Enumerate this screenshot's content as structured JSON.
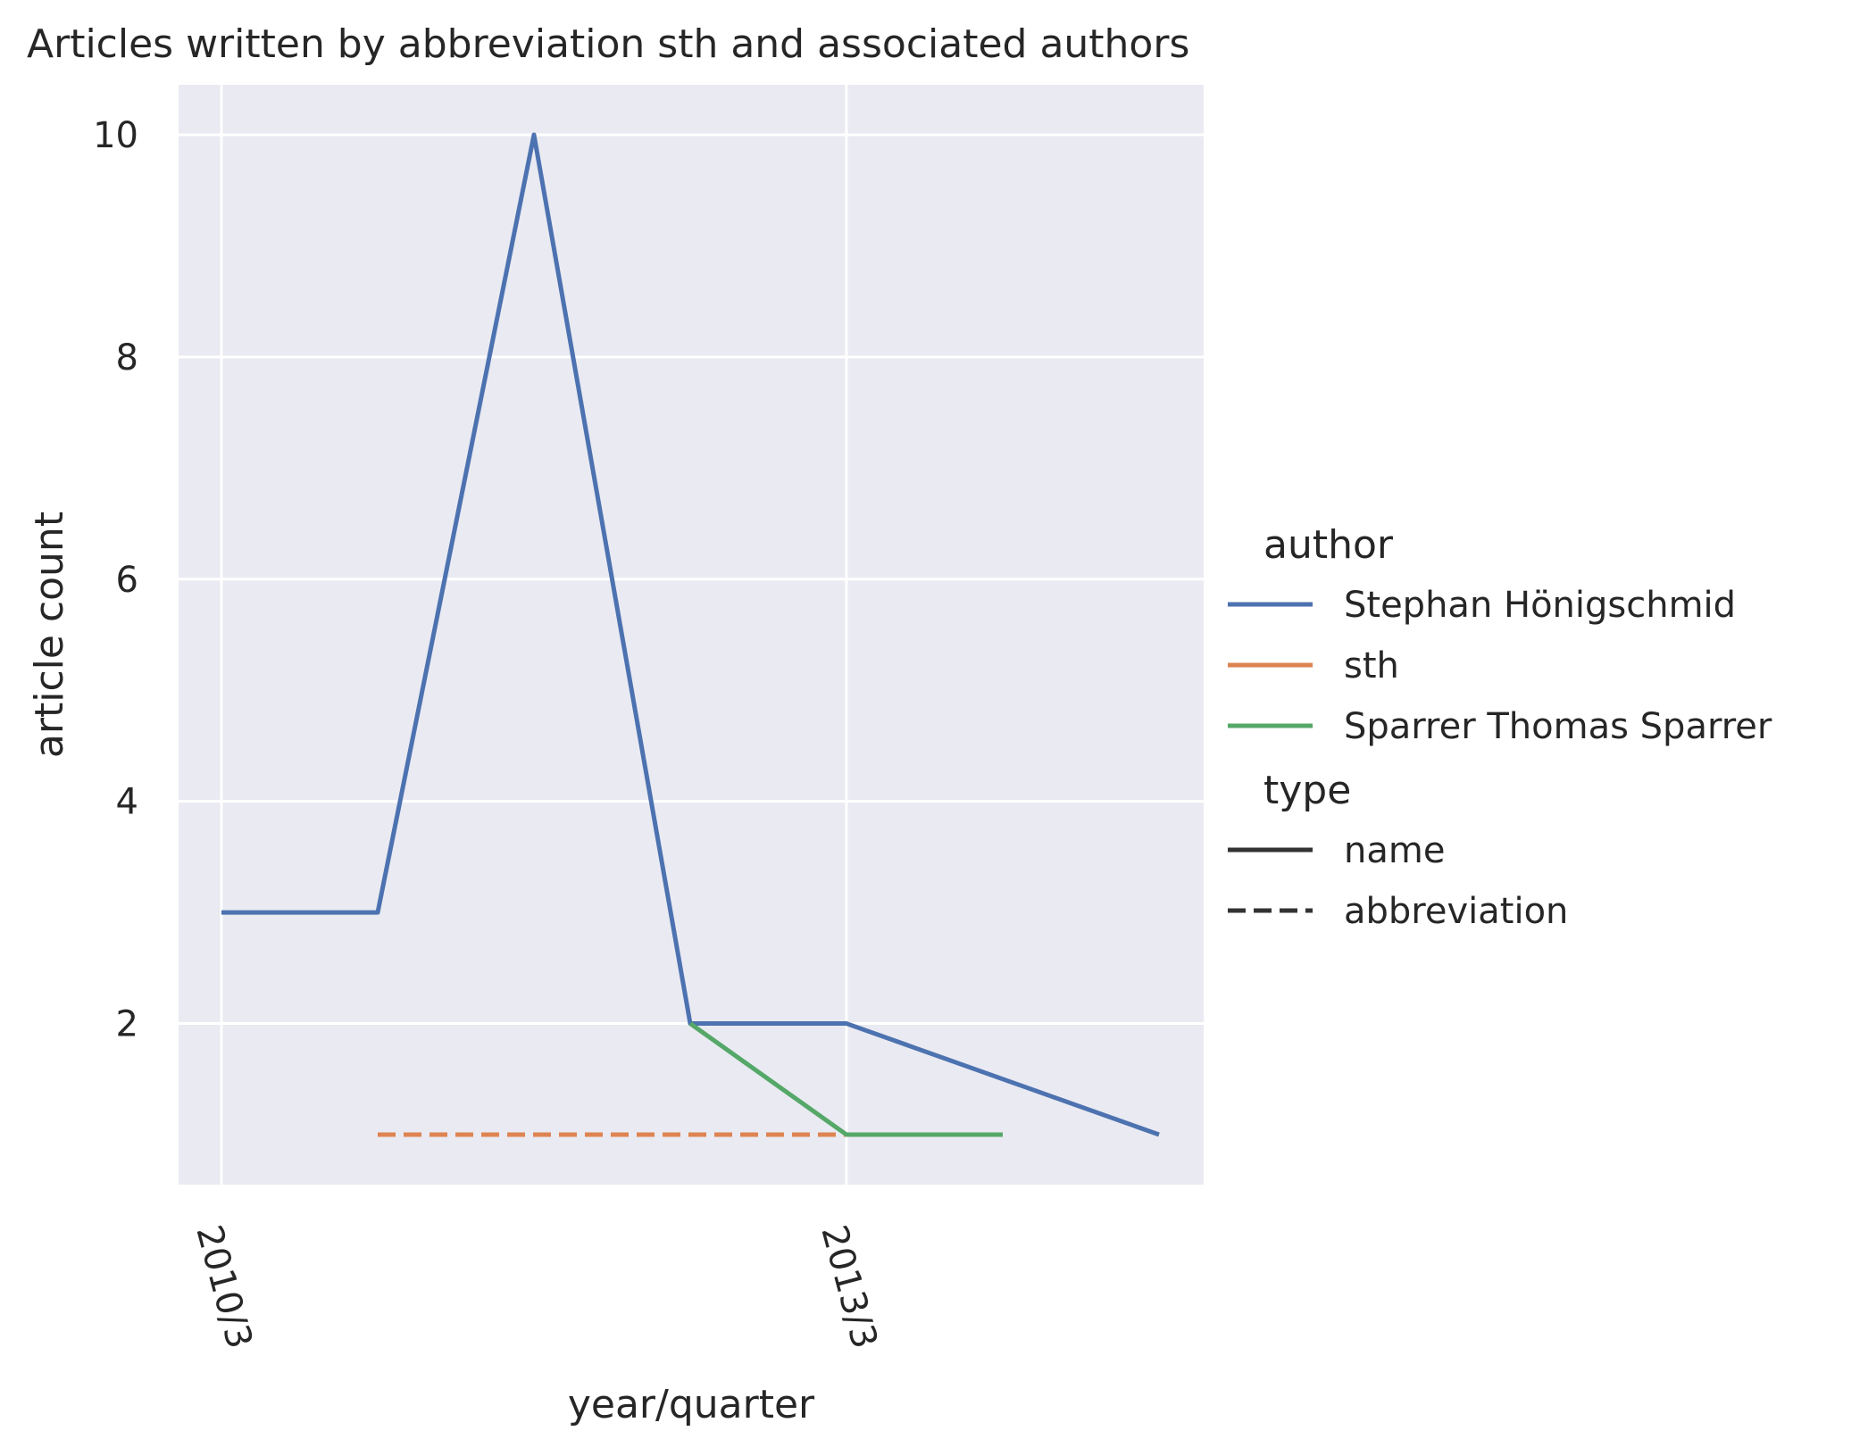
{
  "chart_data": {
    "type": "line",
    "title": "Articles written by abbreviation sth and associated authors",
    "xlabel": "year/quarter",
    "ylabel": "article count",
    "x_tick_labels": [
      "2010/3",
      "2013/3"
    ],
    "y_tick_labels": [
      "2",
      "4",
      "6",
      "8",
      "10"
    ],
    "x_categories": [
      "2010/3",
      "2011/2",
      "2012/1",
      "2012/4",
      "2013/3",
      "2014/2",
      "2015/1"
    ],
    "ylim": [
      0.55,
      10.45
    ],
    "grid": true,
    "legend_placement": "right",
    "series": [
      {
        "name": "Stephan Hönigschmid",
        "type": "name",
        "color": "#4c72b0",
        "dash": "solid",
        "x": [
          "2010/3",
          "2011/2",
          "2012/1",
          "2012/4",
          "2013/3",
          "2015/1"
        ],
        "values": [
          3,
          3,
          10,
          2,
          2,
          1
        ]
      },
      {
        "name": "sth",
        "type": "abbreviation",
        "color": "#dd8452",
        "dash": "dashed",
        "x": [
          "2011/2",
          "2013/3"
        ],
        "values": [
          1,
          1
        ]
      },
      {
        "name": "Sparrer Thomas Sparrer",
        "type": "name",
        "color": "#55a868",
        "dash": "solid",
        "x": [
          "2012/4",
          "2013/3",
          "2014/2"
        ],
        "values": [
          2,
          1,
          1
        ]
      }
    ],
    "legend": {
      "author_title": "author",
      "type_title": "type",
      "type_entries": [
        {
          "label": "name",
          "dash": "solid"
        },
        {
          "label": "abbreviation",
          "dash": "dashed"
        }
      ]
    },
    "colors": {
      "plot_background": "#eaeaf2",
      "grid": "#ffffff",
      "type_legend_line": "#333333"
    }
  }
}
